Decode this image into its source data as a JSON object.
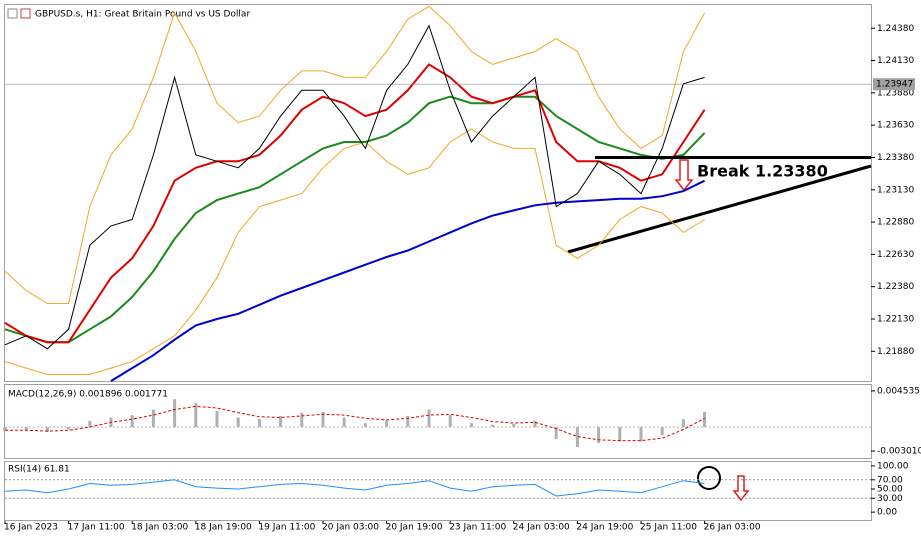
{
  "chart_data": [
    {
      "type": "line",
      "title": "GBPUSD.s, H1:  Great Britain Pound vs US Dollar",
      "categories": [
        "16 Jan 2023",
        null,
        null,
        "17 Jan 11:00",
        null,
        null,
        "18 Jan 03:00",
        null,
        null,
        "18 Jan 19:00",
        null,
        null,
        "19 Jan 11:00",
        null,
        null,
        "20 Jan 03:00",
        null,
        null,
        "20 Jan 19:00",
        null,
        null,
        "23 Jan 11:00",
        null,
        null,
        "24 Jan 03:00",
        null,
        null,
        "24 Jan 19:00",
        null,
        null,
        "25 Jan 11:00",
        null,
        null,
        "26 Jan 03:00"
      ],
      "series": [
        {
          "color": "#000000",
          "values": [
            1.2193,
            1.22,
            1.219,
            1.2205,
            1.227,
            1.2285,
            1.229,
            1.234,
            1.24,
            1.234,
            1.2335,
            1.233,
            1.2345,
            1.237,
            1.239,
            1.239,
            1.237,
            1.2345,
            1.239,
            1.241,
            1.244,
            1.239,
            1.235,
            1.237,
            1.2385,
            1.24,
            1.23,
            1.231,
            1.2335,
            1.2325,
            1.231,
            1.2345,
            1.2395,
            1.24
          ]
        },
        {
          "color": "#f5a623",
          "values": [
            1.225,
            1.2235,
            1.2225,
            1.2225,
            1.23,
            1.234,
            1.236,
            1.24,
            1.245,
            1.242,
            1.238,
            1.2365,
            1.237,
            1.239,
            1.2405,
            1.2405,
            1.24,
            1.24,
            1.242,
            1.2445,
            1.2455,
            1.244,
            1.242,
            1.241,
            1.2415,
            1.242,
            1.243,
            1.242,
            1.2385,
            1.236,
            1.2345,
            1.2355,
            1.242,
            1.245
          ]
        },
        {
          "color": "#f5a623",
          "values": [
            1.218,
            1.2175,
            1.217,
            1.217,
            1.217,
            1.2175,
            1.218,
            1.219,
            1.22,
            1.222,
            1.2245,
            1.228,
            1.23,
            1.2305,
            1.231,
            1.233,
            1.2345,
            1.235,
            1.2335,
            1.2325,
            1.233,
            1.235,
            1.236,
            1.235,
            1.2345,
            1.2345,
            1.227,
            1.226,
            1.227,
            1.229,
            1.23,
            1.2295,
            1.228,
            1.229
          ]
        },
        {
          "color": "#0000d0",
          "values": [
            null,
            null,
            null,
            null,
            null,
            1.2165,
            1.2175,
            1.2185,
            1.2197,
            1.2208,
            1.2213,
            1.2217,
            1.2224,
            1.2231,
            1.2237,
            1.2243,
            1.2249,
            1.2255,
            1.2261,
            1.2266,
            1.2273,
            1.228,
            1.2287,
            1.2293,
            1.2297,
            1.2301,
            1.2303,
            1.2304,
            1.2305,
            1.2306,
            1.2306,
            1.2308,
            1.2312,
            1.232
          ]
        },
        {
          "color": "#1a8a1a",
          "values": [
            1.2205,
            1.22,
            1.2195,
            1.2195,
            1.2205,
            1.2215,
            1.223,
            1.225,
            1.2275,
            1.2295,
            1.2305,
            1.231,
            1.2315,
            1.2325,
            1.2335,
            1.2345,
            1.235,
            1.235,
            1.2355,
            1.2365,
            1.238,
            1.2385,
            1.238,
            1.238,
            1.2385,
            1.2385,
            1.237,
            1.236,
            1.235,
            1.2345,
            1.234,
            1.2337,
            1.234,
            1.2357
          ]
        },
        {
          "color": "#e00000",
          "values": [
            1.221,
            1.22,
            1.2195,
            1.2195,
            1.222,
            1.2245,
            1.226,
            1.2285,
            1.232,
            1.233,
            1.2335,
            1.2335,
            1.234,
            1.2355,
            1.2375,
            1.2385,
            1.238,
            1.237,
            1.2375,
            1.239,
            1.241,
            1.24,
            1.2385,
            1.238,
            1.2385,
            1.239,
            1.235,
            1.2335,
            1.2335,
            1.233,
            1.232,
            1.2325,
            1.235,
            1.2375
          ]
        }
      ],
      "ylim": [
        1.2165,
        1.2456
      ],
      "yticks": [
        {
          "value": 1.2438,
          "label": "1.24380"
        },
        {
          "value": 1.2413,
          "label": "1.24130"
        },
        {
          "value": 1.2388,
          "label": "1.23880"
        },
        {
          "value": 1.2363,
          "label": "1.23630"
        },
        {
          "value": 1.2338,
          "label": "1.23380"
        },
        {
          "value": 1.2313,
          "label": "1.23130"
        },
        {
          "value": 1.2288,
          "label": "1.22880"
        },
        {
          "value": 1.2263,
          "label": "1.22630"
        },
        {
          "value": 1.2238,
          "label": "1.22380"
        },
        {
          "value": 1.2213,
          "label": "1.22130"
        },
        {
          "value": 1.2188,
          "label": "1.21880"
        }
      ],
      "last_price": 1.23947,
      "hline": 1.2338,
      "annotation": "Break 1.23380"
    },
    {
      "type": "bar",
      "title": "MACD(12,26,9) 0.001896 0.001771",
      "series": [
        {
          "type": "bar",
          "color": "#b0b0b0",
          "values": [
            -0.0005,
            -0.0004,
            -0.0006,
            -0.0003,
            0.0008,
            0.0012,
            0.0015,
            0.0022,
            0.0035,
            0.003,
            0.002,
            0.0012,
            0.001,
            0.0014,
            0.0018,
            0.0019,
            0.0012,
            0.0005,
            0.0008,
            0.0014,
            0.0022,
            0.0015,
            0.0005,
            0.0003,
            0.0004,
            0.0008,
            -0.0015,
            -0.0025,
            -0.002,
            -0.0018,
            -0.0018,
            -0.001,
            0.001,
            0.0019
          ]
        },
        {
          "type": "line",
          "color": "#e00000",
          "values": [
            -0.0004,
            -0.0004,
            -0.0005,
            -0.0004,
            0.0,
            0.0006,
            0.001,
            0.0015,
            0.0022,
            0.0026,
            0.0024,
            0.0018,
            0.0013,
            0.0012,
            0.0014,
            0.0016,
            0.0015,
            0.0011,
            0.0009,
            0.0011,
            0.0015,
            0.0016,
            0.0012,
            0.0007,
            0.0005,
            0.0006,
            -0.0002,
            -0.0012,
            -0.0016,
            -0.0017,
            -0.0017,
            -0.0014,
            -0.0003,
            0.0011
          ]
        }
      ],
      "ylim": [
        -0.00388,
        0.00528
      ],
      "yticks": [
        0.004535,
        {
          "value": -0.00301,
          "label": "-0.003010"
        }
      ]
    },
    {
      "type": "line",
      "title": "RSI(14) 61.81",
      "series": [
        {
          "color": "#1e90ff",
          "values": [
            45,
            48,
            42,
            50,
            62,
            58,
            60,
            65,
            70,
            55,
            52,
            50,
            55,
            60,
            62,
            58,
            52,
            48,
            58,
            62,
            68,
            52,
            45,
            55,
            58,
            60,
            35,
            40,
            48,
            45,
            42,
            55,
            68,
            62
          ]
        }
      ],
      "ylim": [
        -17,
        108.5
      ],
      "yticks": [
        {
          "value": 100,
          "label": "100.00"
        },
        {
          "value": 70,
          "label": "70.00"
        },
        {
          "value": 50,
          "label": "50.00"
        },
        {
          "value": 30,
          "label": "30.00"
        },
        {
          "value": 0,
          "label": "0.00"
        }
      ],
      "levels": [
        70,
        30
      ]
    }
  ]
}
